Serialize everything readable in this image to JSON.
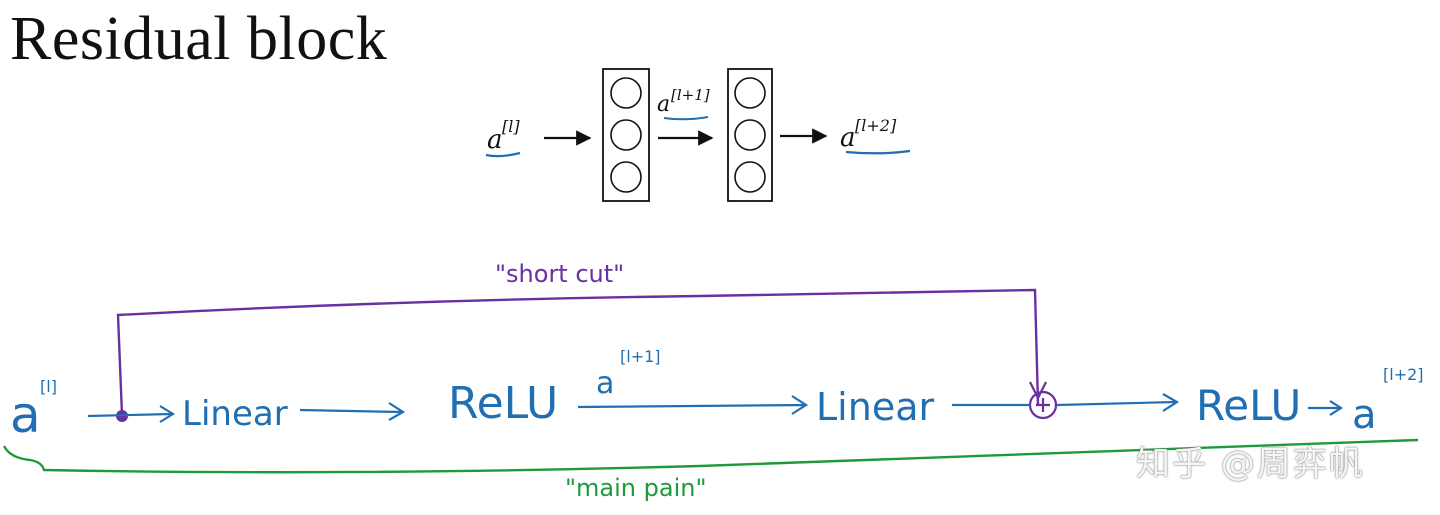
{
  "title": "Residual block",
  "top_diagram": {
    "input_label": "a",
    "input_sup": "[l]",
    "mid_label": "a",
    "mid_sup": "[l+1]",
    "output_label": "a",
    "output_sup": "[l+2]"
  },
  "handwritten": {
    "shortcut_label": "\"short cut\"",
    "main_path_label": "\"main pain\"",
    "a_input": "a",
    "a_input_sup": "[l]",
    "linear_1": "Linear",
    "relu_1": "ReLU",
    "a_mid": "a",
    "a_mid_sup": "[l+1]",
    "linear_2": "Linear",
    "relu_2": "ReLU",
    "a_output": "a",
    "a_output_sup": "[l+2]"
  },
  "watermark": "知乎 @周弈帆",
  "colors": {
    "ink_black": "#111111",
    "ink_blue": "#1f6fb2",
    "ink_purple": "#6a2fa0",
    "ink_green": "#1f9a3a"
  }
}
